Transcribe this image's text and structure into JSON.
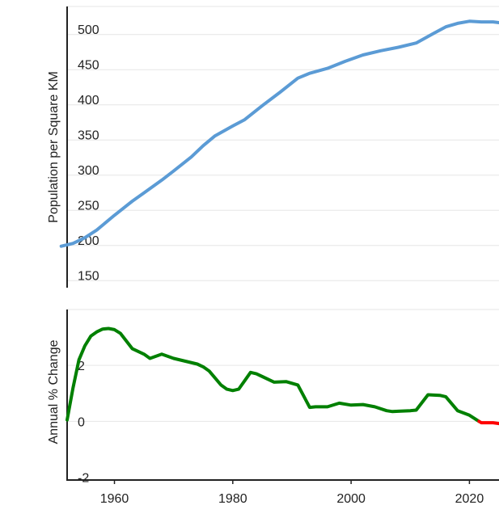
{
  "chart_data": [
    {
      "type": "line",
      "ylabel": "Population per Square KM",
      "xlabel": "",
      "ylim": [
        140,
        540
      ],
      "xlim": [
        1952,
        2025
      ],
      "y_ticks": [
        150,
        200,
        250,
        300,
        350,
        400,
        450,
        500
      ],
      "grid": true,
      "color": "#5b9bd5",
      "series": [
        {
          "name": "density",
          "x": [
            1951,
            1953,
            1955,
            1957,
            1960,
            1963,
            1965,
            1968,
            1970,
            1973,
            1975,
            1977,
            1980,
            1982,
            1985,
            1988,
            1991,
            1993,
            1996,
            1999,
            2002,
            2005,
            2008,
            2011,
            2014,
            2016,
            2018,
            2020,
            2022,
            2024,
            2025
          ],
          "y": [
            199,
            203,
            211,
            222,
            243,
            263,
            275,
            293,
            306,
            326,
            342,
            356,
            370,
            379,
            399,
            418,
            438,
            445,
            452,
            462,
            471,
            477,
            482,
            488,
            502,
            511,
            516,
            519,
            518,
            518,
            517
          ]
        }
      ]
    },
    {
      "type": "line",
      "ylabel": "Annual % Change",
      "xlabel": "",
      "ylim": [
        -2.1,
        4
      ],
      "xlim": [
        1952,
        2025
      ],
      "y_ticks": [
        -2,
        0,
        2
      ],
      "x_ticks": [
        1960,
        1980,
        2000,
        2020
      ],
      "grid": true,
      "positive_color": "#008000",
      "negative_color": "#ff0000",
      "series": [
        {
          "name": "annual_change",
          "x": [
            1952,
            1953,
            1954,
            1955,
            1956,
            1957,
            1958,
            1959,
            1960,
            1961,
            1963,
            1965,
            1966,
            1968,
            1970,
            1972,
            1974,
            1975,
            1976,
            1977,
            1978,
            1979,
            1980,
            1981,
            1982,
            1983,
            1984,
            1985,
            1987,
            1989,
            1991,
            1992,
            1993,
            1994,
            1996,
            1998,
            2000,
            2002,
            2004,
            2006,
            2007,
            2008,
            2010,
            2011,
            2013,
            2015,
            2016,
            2018,
            2020,
            2022,
            2024,
            2025
          ],
          "y": [
            0.05,
            1.2,
            2.2,
            2.7,
            3.05,
            3.2,
            3.3,
            3.32,
            3.28,
            3.15,
            2.6,
            2.4,
            2.25,
            2.4,
            2.25,
            2.15,
            2.05,
            1.95,
            1.8,
            1.55,
            1.3,
            1.15,
            1.1,
            1.15,
            1.45,
            1.75,
            1.7,
            1.6,
            1.4,
            1.42,
            1.3,
            0.9,
            0.5,
            0.52,
            0.52,
            0.65,
            0.58,
            0.6,
            0.52,
            0.38,
            0.35,
            0.36,
            0.38,
            0.4,
            0.95,
            0.93,
            0.88,
            0.38,
            0.22,
            -0.05,
            -0.05,
            -0.08
          ]
        }
      ]
    }
  ]
}
